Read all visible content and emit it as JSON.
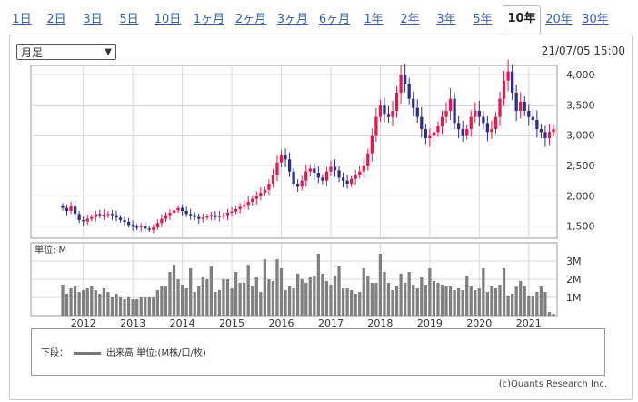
{
  "tabs": [
    {
      "label": "1日",
      "active": false
    },
    {
      "label": "2日",
      "active": false
    },
    {
      "label": "3日",
      "active": false
    },
    {
      "label": "5日",
      "active": false
    },
    {
      "label": "10日",
      "active": false
    },
    {
      "label": "1ヶ月",
      "active": false
    },
    {
      "label": "2ヶ月",
      "active": false
    },
    {
      "label": "3ヶ月",
      "active": false
    },
    {
      "label": "6ヶ月",
      "active": false
    },
    {
      "label": "1年",
      "active": false
    },
    {
      "label": "2年",
      "active": false
    },
    {
      "label": "3年",
      "active": false
    },
    {
      "label": "5年",
      "active": false
    },
    {
      "label": "10年",
      "active": true
    },
    {
      "label": "20年",
      "active": false
    },
    {
      "label": "30年",
      "active": false
    }
  ],
  "period_select": {
    "value": "月足"
  },
  "timestamp": "21/07/05 15:00",
  "legend": {
    "prefix": "下段：",
    "text": "出来高 単位:(M株/口/枚)"
  },
  "copyright": "(c)Quants Research Inc.",
  "colors": {
    "up": "#e8174a",
    "down": "#2e2e8e",
    "volume": "#808080",
    "grid": "#d8d8d8"
  },
  "chart_data": [
    {
      "type": "candlestick",
      "title": "",
      "xlabel": "",
      "ylabel": "",
      "ylim": [
        1300,
        4150
      ],
      "yticks": [
        1500,
        2000,
        2500,
        3000,
        3500,
        4000
      ],
      "ytick_labels": [
        "1,500",
        "2,000",
        "2,500",
        "3,000",
        "3,500",
        "4,000"
      ],
      "xtick_labels": [
        "2012",
        "2013",
        "2014",
        "2015",
        "2016",
        "2017",
        "2018",
        "2019",
        "2020",
        "2021"
      ],
      "start": "2011-08",
      "months": 120,
      "close": [
        1800,
        1750,
        1830,
        1700,
        1600,
        1580,
        1620,
        1650,
        1700,
        1680,
        1690,
        1700,
        1680,
        1640,
        1600,
        1570,
        1520,
        1490,
        1480,
        1500,
        1460,
        1440,
        1480,
        1550,
        1620,
        1680,
        1720,
        1760,
        1800,
        1750,
        1700,
        1680,
        1650,
        1620,
        1640,
        1660,
        1680,
        1650,
        1670,
        1680,
        1720,
        1740,
        1780,
        1820,
        1850,
        1900,
        1950,
        2000,
        2050,
        2100,
        2200,
        2350,
        2550,
        2680,
        2600,
        2400,
        2200,
        2150,
        2250,
        2400,
        2450,
        2380,
        2300,
        2250,
        2400,
        2480,
        2420,
        2300,
        2250,
        2200,
        2280,
        2350,
        2400,
        2500,
        2700,
        3000,
        3300,
        3500,
        3350,
        3300,
        3400,
        3700,
        4000,
        3850,
        3600,
        3450,
        3300,
        3100,
        2950,
        3000,
        3050,
        3150,
        3300,
        3400,
        3600,
        3200,
        3100,
        3000,
        3100,
        3300,
        3400,
        3300,
        3200,
        3050,
        3100,
        3300,
        3600,
        3900,
        4050,
        3700,
        3400,
        3550,
        3400,
        3300,
        3250,
        3100,
        3050,
        2950,
        3050,
        3100
      ],
      "volume_ylim": [
        0,
        4
      ],
      "volume_yticks": [
        1,
        2,
        3
      ],
      "volume_ytick_labels": [
        "1M",
        "2M",
        "3M"
      ],
      "volume_unit_label": "単位: M",
      "volume": [
        1.7,
        1.2,
        1.5,
        1.6,
        1.3,
        1.4,
        1.5,
        1.6,
        1.4,
        1.2,
        1.5,
        1.3,
        1.0,
        1.2,
        1.0,
        0.9,
        1.0,
        0.9,
        0.9,
        1.0,
        1.0,
        1.0,
        1.0,
        1.4,
        1.6,
        1.6,
        2.4,
        2.8,
        2.0,
        1.7,
        1.5,
        2.6,
        1.3,
        1.6,
        2.1,
        2.0,
        2.7,
        1.3,
        1.4,
        2.0,
        2.0,
        1.5,
        2.4,
        1.8,
        1.8,
        2.8,
        1.6,
        2.1,
        1.3,
        3.1,
        2.0,
        1.9,
        3.1,
        2.6,
        1.4,
        1.6,
        1.5,
        2.3,
        2.0,
        1.8,
        2.1,
        2.2,
        3.4,
        2.3,
        1.9,
        1.7,
        2.2,
        2.7,
        1.5,
        1.5,
        1.4,
        1.2,
        1.3,
        2.6,
        2.2,
        1.8,
        1.8,
        3.4,
        2.4,
        1.8,
        1.4,
        1.6,
        2.3,
        1.8,
        2.4,
        1.7,
        1.5,
        2.1,
        1.7,
        2.6,
        1.9,
        1.8,
        1.7,
        1.6,
        1.6,
        1.4,
        1.5,
        1.4,
        2.2,
        1.6,
        1.4,
        1.5,
        2.6,
        1.3,
        1.6,
        1.5,
        1.7,
        2.6,
        1.1,
        1.2,
        1.6,
        1.9,
        1.6,
        1.1,
        1.1,
        1.3,
        1.6,
        1.3,
        0.2,
        0.1
      ]
    }
  ]
}
